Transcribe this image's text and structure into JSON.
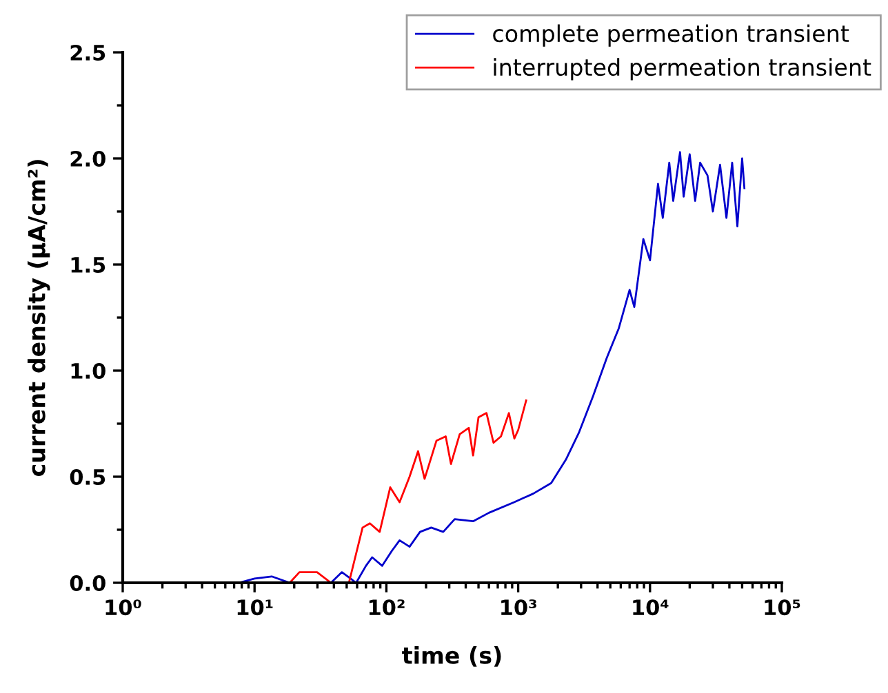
{
  "chart_data": {
    "type": "line",
    "xlabel": "time (s)",
    "ylabel": "current density (µA/cm²)",
    "log": "x",
    "xlim": [
      1,
      100000
    ],
    "ylim": [
      0,
      2.5
    ],
    "xticks": [
      {
        "value": 1,
        "label": "10⁰"
      },
      {
        "value": 10,
        "label": "10¹"
      },
      {
        "value": 100,
        "label": "10²"
      },
      {
        "value": 1000,
        "label": "10³"
      },
      {
        "value": 10000,
        "label": "10⁴"
      },
      {
        "value": 100000,
        "label": "10⁵"
      }
    ],
    "yticks": [
      {
        "value": 0,
        "label": "0.0"
      },
      {
        "value": 0.5,
        "label": "0.5"
      },
      {
        "value": 1,
        "label": "1.0"
      },
      {
        "value": 1.5,
        "label": "1.5"
      },
      {
        "value": 2,
        "label": "2.0"
      },
      {
        "value": 2.5,
        "label": "2.5"
      }
    ],
    "grid": false,
    "legend": "top right",
    "marker": "none",
    "line_style": "solid",
    "series": [
      {
        "name": "complete permeation transient",
        "color": "#0000cc",
        "x": [
          7.6,
          10,
          13.5,
          18.5,
          25,
          38,
          46,
          59,
          70,
          78,
          93,
          110,
          126,
          150,
          180,
          219,
          270,
          330,
          455,
          600,
          933,
          1300,
          1780,
          2300,
          2900,
          3700,
          4700,
          5800,
          7000,
          7600,
          8900,
          10000,
          11500,
          12500,
          14000,
          15000,
          16900,
          18000,
          20000,
          22000,
          24000,
          27300,
          30000,
          34000,
          38000,
          42000,
          46000,
          50000,
          52000
        ],
        "values": [
          0,
          0.02,
          0.03,
          0,
          0,
          0,
          0.05,
          0,
          0.08,
          0.12,
          0.08,
          0.15,
          0.2,
          0.17,
          0.24,
          0.26,
          0.24,
          0.3,
          0.29,
          0.33,
          0.38,
          0.42,
          0.47,
          0.58,
          0.71,
          0.88,
          1.06,
          1.2,
          1.38,
          1.3,
          1.62,
          1.52,
          1.88,
          1.72,
          1.98,
          1.8,
          2.03,
          1.82,
          2.02,
          1.8,
          1.98,
          1.92,
          1.75,
          1.97,
          1.72,
          1.98,
          1.68,
          2.0,
          1.86
        ]
      },
      {
        "name": "interrupted permeation transient",
        "color": "#ff0000",
        "x": [
          18.5,
          21.9,
          25,
          29.8,
          38,
          52,
          66,
          75,
          89,
          107,
          126,
          150,
          174,
          195,
          240,
          282,
          309,
          360,
          422,
          455,
          500,
          575,
          650,
          740,
          850,
          935,
          1000,
          1150
        ],
        "values": [
          0,
          0.05,
          0.05,
          0.05,
          0,
          0,
          0.26,
          0.28,
          0.24,
          0.45,
          0.38,
          0.5,
          0.62,
          0.49,
          0.67,
          0.69,
          0.56,
          0.7,
          0.73,
          0.6,
          0.78,
          0.8,
          0.66,
          0.69,
          0.8,
          0.68,
          0.72,
          0.86
        ]
      }
    ]
  }
}
